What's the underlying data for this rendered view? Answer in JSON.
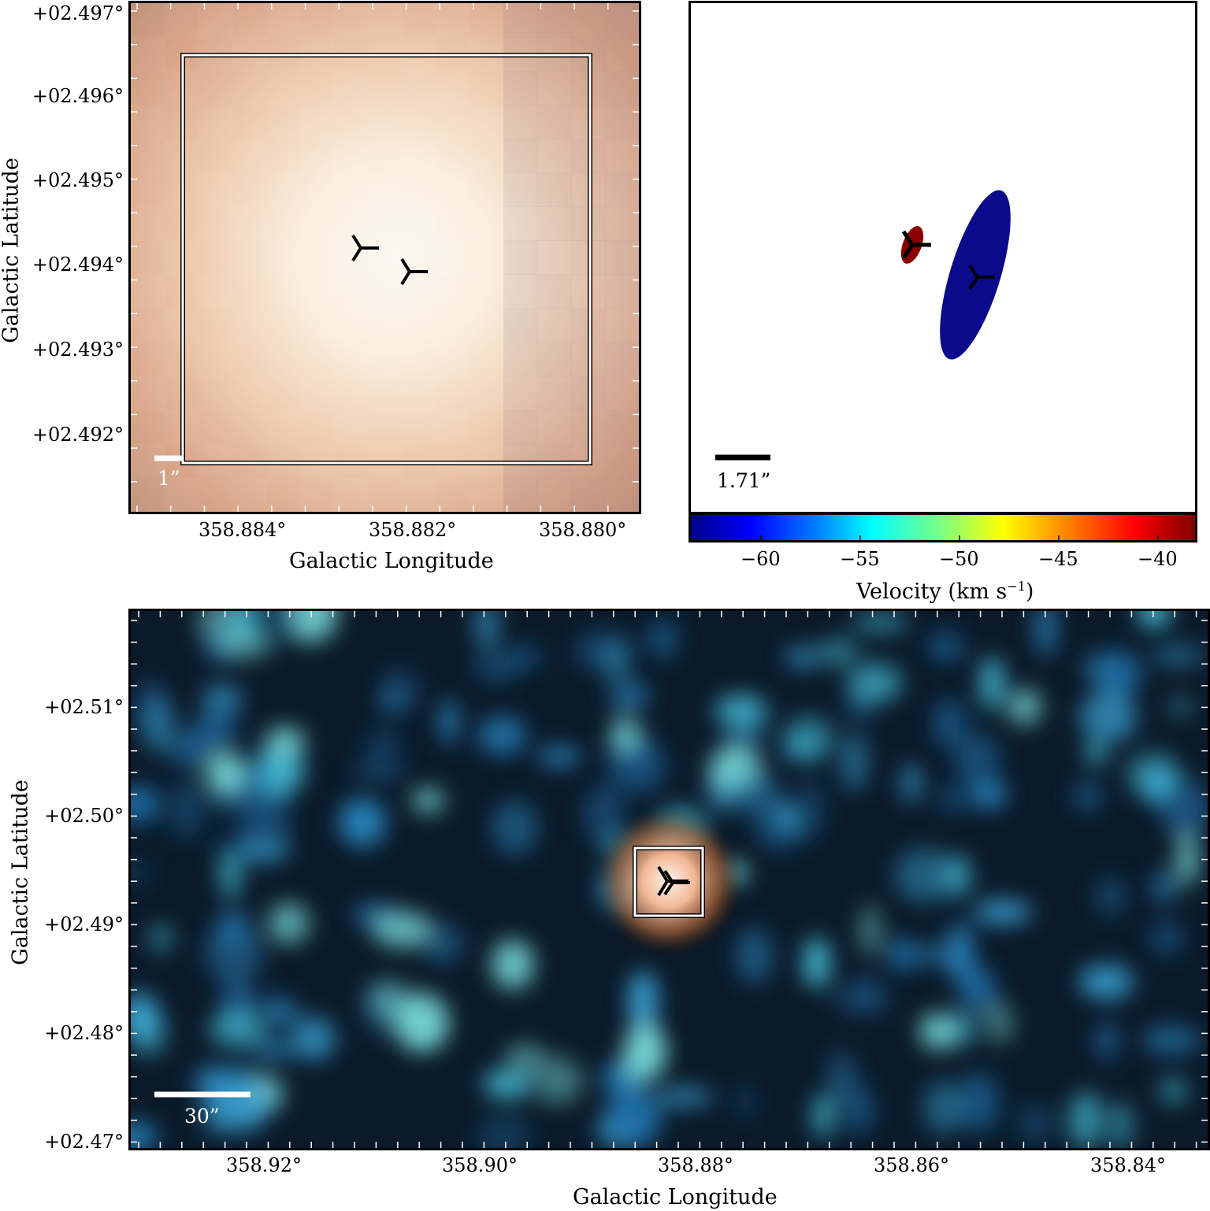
{
  "top_left": {
    "y_ticks": [
      "+02.497°",
      "+02.496°",
      "+02.495°",
      "+02.494°",
      "+02.493°",
      "+02.492°"
    ],
    "x_ticks": [
      "358.884°",
      "358.882°",
      "358.880°"
    ],
    "xlabel": "Galactic Longitude",
    "ylabel": "Galactic Latitude",
    "scalebar": "1”"
  },
  "top_right": {
    "scalebar": "1.71”",
    "colorbar_ticks": [
      "−60",
      "−55",
      "−50",
      "−45",
      "−40"
    ],
    "colorbar_label": "Velocity (km s",
    "colorbar_label_sup": "−1",
    "colorbar_label_end": ")",
    "colors": {
      "blue_ellipse": "#0a0a8a",
      "red_ellipse": "#8b0000"
    }
  },
  "bottom": {
    "y_ticks": [
      "+02.51°",
      "+02.50°",
      "+02.49°",
      "+02.48°",
      "+02.47°"
    ],
    "x_ticks": [
      "358.92°",
      "358.90°",
      "358.88°",
      "358.86°",
      "358.84°"
    ],
    "xlabel": "Galactic Longitude",
    "ylabel": "Galactic Latitude",
    "scalebar": "30”"
  }
}
